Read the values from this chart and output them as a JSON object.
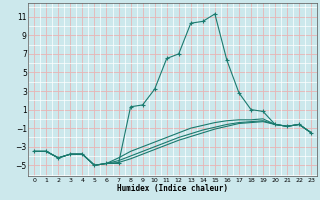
{
  "xlabel": "Humidex (Indice chaleur)",
  "background_color": "#cce8ec",
  "grid_color_white": "#ffffff",
  "grid_color_pink": "#e8b4b4",
  "line_color": "#1a7a6e",
  "xlim": [
    -0.5,
    23.5
  ],
  "ylim": [
    -6.2,
    12.5
  ],
  "xticks": [
    0,
    1,
    2,
    3,
    4,
    5,
    6,
    7,
    8,
    9,
    10,
    11,
    12,
    13,
    14,
    15,
    16,
    17,
    18,
    19,
    20,
    21,
    22,
    23
  ],
  "yticks": [
    -5,
    -3,
    -1,
    1,
    3,
    5,
    7,
    9,
    11
  ],
  "series1": [
    [
      0,
      -3.5
    ],
    [
      1,
      -3.5
    ],
    [
      2,
      -4.2
    ],
    [
      3,
      -3.8
    ],
    [
      4,
      -3.8
    ],
    [
      5,
      -5.0
    ],
    [
      6,
      -4.8
    ],
    [
      7,
      -4.8
    ],
    [
      8,
      1.3
    ],
    [
      9,
      1.5
    ],
    [
      10,
      3.2
    ],
    [
      11,
      6.5
    ],
    [
      12,
      7.0
    ],
    [
      13,
      10.3
    ],
    [
      14,
      10.5
    ],
    [
      15,
      11.3
    ],
    [
      16,
      6.3
    ],
    [
      17,
      2.8
    ],
    [
      18,
      1.0
    ],
    [
      19,
      0.8
    ],
    [
      20,
      -0.6
    ],
    [
      21,
      -0.8
    ],
    [
      22,
      -0.6
    ],
    [
      23,
      -1.5
    ]
  ],
  "series2": [
    [
      0,
      -3.5
    ],
    [
      1,
      -3.5
    ],
    [
      2,
      -4.2
    ],
    [
      3,
      -3.8
    ],
    [
      4,
      -3.8
    ],
    [
      5,
      -5.0
    ],
    [
      6,
      -4.8
    ],
    [
      7,
      -4.2
    ],
    [
      8,
      -3.5
    ],
    [
      9,
      -3.0
    ],
    [
      10,
      -2.5
    ],
    [
      11,
      -2.0
    ],
    [
      12,
      -1.5
    ],
    [
      13,
      -1.0
    ],
    [
      14,
      -0.7
    ],
    [
      15,
      -0.4
    ],
    [
      16,
      -0.2
    ],
    [
      17,
      -0.1
    ],
    [
      18,
      -0.1
    ],
    [
      19,
      -0.0
    ],
    [
      20,
      -0.6
    ],
    [
      21,
      -0.8
    ],
    [
      22,
      -0.6
    ],
    [
      23,
      -1.5
    ]
  ],
  "series3": [
    [
      0,
      -3.5
    ],
    [
      1,
      -3.5
    ],
    [
      2,
      -4.2
    ],
    [
      3,
      -3.8
    ],
    [
      4,
      -3.8
    ],
    [
      5,
      -5.0
    ],
    [
      6,
      -4.8
    ],
    [
      7,
      -4.5
    ],
    [
      8,
      -4.0
    ],
    [
      9,
      -3.5
    ],
    [
      10,
      -3.0
    ],
    [
      11,
      -2.5
    ],
    [
      12,
      -2.0
    ],
    [
      13,
      -1.6
    ],
    [
      14,
      -1.2
    ],
    [
      15,
      -0.9
    ],
    [
      16,
      -0.6
    ],
    [
      17,
      -0.4
    ],
    [
      18,
      -0.3
    ],
    [
      19,
      -0.2
    ],
    [
      20,
      -0.6
    ],
    [
      21,
      -0.8
    ],
    [
      22,
      -0.6
    ],
    [
      23,
      -1.5
    ]
  ],
  "series4": [
    [
      0,
      -3.5
    ],
    [
      1,
      -3.5
    ],
    [
      2,
      -4.2
    ],
    [
      3,
      -3.8
    ],
    [
      4,
      -3.8
    ],
    [
      5,
      -5.0
    ],
    [
      6,
      -4.8
    ],
    [
      7,
      -4.7
    ],
    [
      8,
      -4.3
    ],
    [
      9,
      -3.8
    ],
    [
      10,
      -3.3
    ],
    [
      11,
      -2.8
    ],
    [
      12,
      -2.3
    ],
    [
      13,
      -1.9
    ],
    [
      14,
      -1.5
    ],
    [
      15,
      -1.1
    ],
    [
      16,
      -0.8
    ],
    [
      17,
      -0.5
    ],
    [
      18,
      -0.4
    ],
    [
      19,
      -0.3
    ],
    [
      20,
      -0.6
    ],
    [
      21,
      -0.8
    ],
    [
      22,
      -0.6
    ],
    [
      23,
      -1.5
    ]
  ]
}
